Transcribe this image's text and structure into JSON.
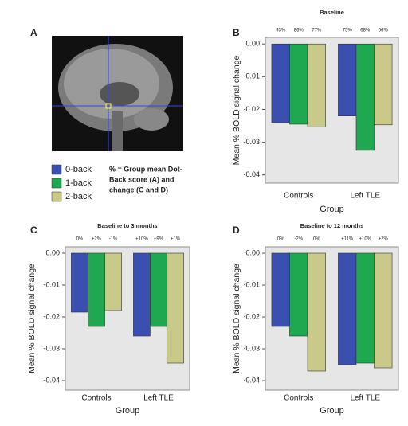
{
  "panel_a": {
    "label": "A",
    "note": [
      "% = Group mean  Dot-",
      "Back score (A) and",
      "change (C and D)"
    ]
  },
  "chart_data": [
    {
      "type": "bar",
      "panel": "B",
      "title": "Baseline",
      "xlabel": "Group",
      "ylabel": "Mean % BOLD signal change",
      "categories": [
        "Controls",
        "Left TLE"
      ],
      "bar_annotations": [
        [
          "93%",
          "86%",
          "77%"
        ],
        [
          "75%",
          "68%",
          "56%"
        ]
      ],
      "series": [
        {
          "name": "0-back",
          "color": "#3b4fb0",
          "values": [
            -0.024,
            -0.022
          ]
        },
        {
          "name": "1-back",
          "color": "#1fa84f",
          "values": [
            -0.0245,
            -0.0325
          ]
        },
        {
          "name": "2-back",
          "color": "#c9c98a",
          "values": [
            -0.0253,
            -0.0247
          ]
        }
      ],
      "ylim": [
        -0.0425,
        0.002
      ],
      "yticks": [
        {
          "value": 0,
          "label": "0.00"
        },
        -0.01,
        -0.02,
        -0.03,
        -0.04
      ]
    },
    {
      "type": "bar",
      "panel": "C",
      "title": "Baseline to 3 months",
      "xlabel": "Group",
      "ylabel": "Mean % BOLD signal change",
      "categories": [
        "Controls",
        "Left TLE"
      ],
      "bar_annotations": [
        [
          "0%",
          "+2%",
          "-1%"
        ],
        [
          "+10%",
          "+9%",
          "+1%"
        ]
      ],
      "series": [
        {
          "color": "#3b4fb0",
          "values": [
            -0.0185,
            -0.026
          ]
        },
        {
          "color": "#1fa84f",
          "values": [
            -0.023,
            -0.023
          ]
        },
        {
          "color": "#c9c98a",
          "values": [
            -0.018,
            -0.0345
          ]
        }
      ],
      "ylim": [
        -0.043,
        0.002
      ],
      "yticks": [
        {
          "value": 0,
          "label": "0.00"
        },
        -0.01,
        -0.02,
        -0.03,
        -0.04
      ]
    },
    {
      "type": "bar",
      "panel": "D",
      "title": "Baseline to 12  months",
      "xlabel": "Group",
      "ylabel": "Mean % BOLD signal change",
      "categories": [
        "Controls",
        "Left TLE"
      ],
      "bar_annotations": [
        [
          "0%",
          "-2%",
          "0%"
        ],
        [
          "+11%",
          "+10%",
          "+2%"
        ]
      ],
      "series": [
        {
          "color": "#3b4fb0",
          "values": [
            -0.023,
            -0.035
          ]
        },
        {
          "color": "#1fa84f",
          "values": [
            -0.026,
            -0.0345
          ]
        },
        {
          "color": "#c9c98a",
          "values": [
            -0.037,
            -0.036
          ]
        }
      ],
      "ylim": [
        -0.043,
        0.002
      ],
      "yticks": [
        {
          "value": 0,
          "label": "0.00"
        },
        -0.01,
        -0.02,
        -0.03,
        -0.04
      ]
    }
  ]
}
